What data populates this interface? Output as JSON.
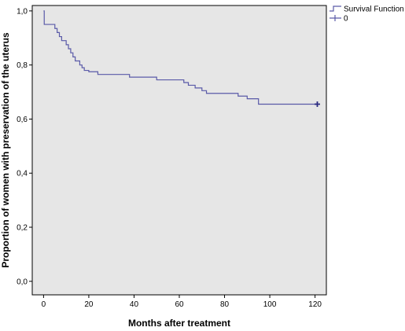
{
  "chart_data": {
    "type": "line",
    "title": "",
    "xlabel": "Months after treatment",
    "ylabel": "Proportion of women with preservation of the uterus",
    "xlim": [
      -5,
      125
    ],
    "ylim": [
      -0.05,
      1.02
    ],
    "x_ticks": [
      0,
      20,
      40,
      60,
      80,
      100,
      120
    ],
    "x_tick_labels": [
      "0",
      "20",
      "40",
      "60",
      "80",
      "100",
      "120"
    ],
    "y_ticks": [
      0.0,
      0.2,
      0.4,
      0.6,
      0.8,
      1.0
    ],
    "y_tick_labels": [
      "0,0",
      "0,2",
      "0,4",
      "0,6",
      "0,8",
      "1,0"
    ],
    "grid": false,
    "plot_background": "#e6e6e6",
    "line_color": "#5a5aa8",
    "legend": {
      "placement": "top-right",
      "entries": [
        {
          "label": "Survival Function",
          "symbol": "step"
        },
        {
          "label": "0",
          "symbol": "plus"
        }
      ]
    },
    "series": [
      {
        "name": "Survival Function",
        "style": "step",
        "points": [
          [
            0,
            1.0
          ],
          [
            0.3,
            0.95
          ],
          [
            5,
            0.935
          ],
          [
            6,
            0.92
          ],
          [
            7,
            0.905
          ],
          [
            8,
            0.89
          ],
          [
            10,
            0.875
          ],
          [
            11,
            0.86
          ],
          [
            12,
            0.845
          ],
          [
            13,
            0.83
          ],
          [
            14,
            0.815
          ],
          [
            16,
            0.8
          ],
          [
            17,
            0.79
          ],
          [
            18,
            0.78
          ],
          [
            20,
            0.775
          ],
          [
            24,
            0.765
          ],
          [
            38,
            0.755
          ],
          [
            50,
            0.745
          ],
          [
            62,
            0.735
          ],
          [
            64,
            0.725
          ],
          [
            67,
            0.715
          ],
          [
            70,
            0.705
          ],
          [
            72,
            0.695
          ],
          [
            86,
            0.685
          ],
          [
            90,
            0.675
          ],
          [
            95,
            0.655
          ],
          [
            121,
            0.655
          ]
        ],
        "censored": [
          [
            121,
            0.655
          ]
        ]
      }
    ]
  }
}
